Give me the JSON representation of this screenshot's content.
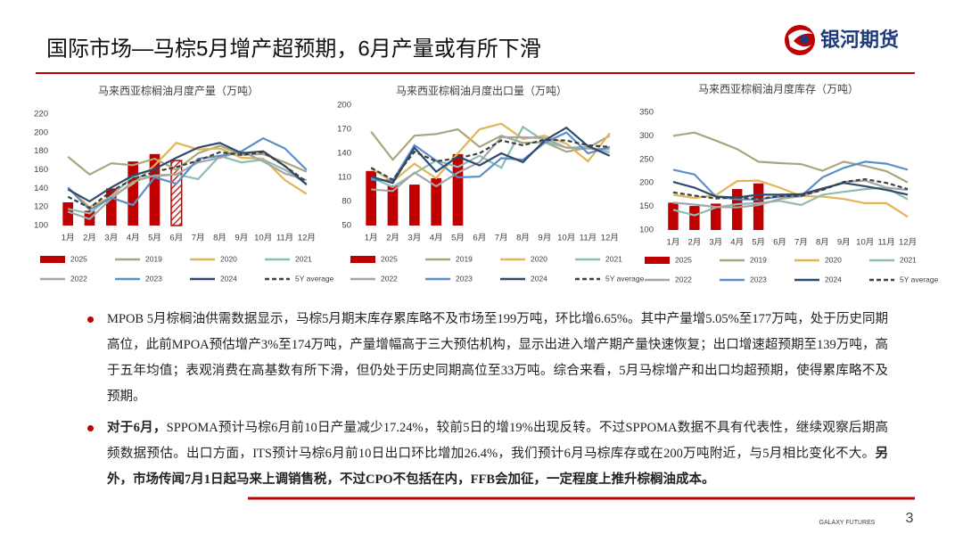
{
  "header": {
    "title": "国际市场—马棕5月增产超预期，6月产量或有所下滑",
    "logo": "银河期货"
  },
  "chart_data": [
    {
      "type": "combo",
      "title": "马来西亚棕榈油月度产量（万吨）",
      "categories": [
        "1月",
        "2月",
        "3月",
        "4月",
        "5月",
        "6月",
        "7月",
        "8月",
        "9月",
        "10月",
        "11月",
        "12月"
      ],
      "ylim": [
        100,
        220
      ],
      "yticks": [
        100,
        120,
        140,
        160,
        180,
        200,
        220
      ],
      "series": [
        {
          "name": "2025",
          "kind": "bar",
          "color": "#c00000",
          "values": [
            125,
            116,
            140,
            169,
            177,
            170,
            null,
            null,
            null,
            null,
            null,
            null
          ],
          "hatched_points": [
            5
          ]
        },
        {
          "name": "2019",
          "kind": "line",
          "color": "#a9a67e",
          "values": [
            174,
            155,
            167,
            165,
            172,
            160,
            178,
            186,
            176,
            177,
            168,
            158
          ]
        },
        {
          "name": "2020",
          "kind": "line",
          "color": "#e2b557",
          "values": [
            141,
            120,
            131,
            145,
            165,
            189,
            182,
            183,
            173,
            172,
            149,
            134
          ]
        },
        {
          "name": "2021",
          "kind": "line",
          "color": "#8fbcb0",
          "values": [
            118,
            113,
            132,
            153,
            153,
            155,
            150,
            175,
            168,
            171,
            160,
            145
          ]
        },
        {
          "name": "2022",
          "kind": "line",
          "color": "#a5a5a5",
          "values": [
            115,
            107,
            129,
            147,
            154,
            155,
            168,
            173,
            180,
            169,
            156,
            149
          ]
        },
        {
          "name": "2023",
          "kind": "line",
          "color": "#5b8fc7",
          "values": [
            141,
            117,
            130,
            122,
            152,
            145,
            172,
            175,
            180,
            194,
            183,
            160
          ]
        },
        {
          "name": "2024",
          "kind": "line",
          "color": "#2e4a70",
          "values": [
            139,
            126,
            141,
            154,
            161,
            173,
            184,
            189,
            178,
            180,
            164,
            144
          ]
        },
        {
          "name": "5Y average",
          "kind": "line",
          "color": "#404040",
          "dashed": true,
          "values": [
            131,
            119,
            137,
            150,
            158,
            163,
            170,
            179,
            176,
            179,
            164,
            147
          ]
        }
      ]
    },
    {
      "type": "combo",
      "title": "马来西亚棕榈油月度出口量（万吨）",
      "categories": [
        "1月",
        "2月",
        "3月",
        "4月",
        "5月",
        "6月",
        "7月",
        "8月",
        "9月",
        "10月",
        "11月",
        "12月"
      ],
      "ylim": [
        50,
        200
      ],
      "yticks": [
        50,
        80,
        110,
        140,
        170,
        200
      ],
      "series": [
        {
          "name": "2025",
          "kind": "bar",
          "color": "#c00000",
          "values": [
            118,
            100,
            101,
            109,
            139,
            null,
            null,
            null,
            null,
            null,
            null,
            null
          ]
        },
        {
          "name": "2019",
          "kind": "line",
          "color": "#a9a67e",
          "values": [
            167,
            132,
            162,
            164,
            170,
            148,
            162,
            153,
            154,
            142,
            147,
            162
          ]
        },
        {
          "name": "2020",
          "kind": "line",
          "color": "#e2b557",
          "values": [
            121,
            105,
            127,
            109,
            140,
            170,
            177,
            158,
            162,
            152,
            130,
            165
          ]
        },
        {
          "name": "2021",
          "kind": "line",
          "color": "#8fbcb0",
          "values": [
            110,
            98,
            115,
            131,
            123,
            137,
            122,
            173,
            155,
            147,
            148,
            141
          ]
        },
        {
          "name": "2022",
          "kind": "line",
          "color": "#a5a5a5",
          "values": [
            95,
            93,
            116,
            99,
            116,
            129,
            160,
            160,
            159,
            147,
            146,
            145
          ]
        },
        {
          "name": "2023",
          "kind": "line",
          "color": "#5b8fc7",
          "values": [
            107,
            106,
            150,
            131,
            110,
            111,
            134,
            132,
            153,
            166,
            140,
            148
          ]
        },
        {
          "name": "2024",
          "kind": "line",
          "color": "#2e4a70",
          "values": [
            111,
            103,
            147,
            117,
            136,
            125,
            140,
            129,
            156,
            172,
            149,
            137
          ]
        },
        {
          "name": "5Y average",
          "kind": "line",
          "color": "#404040",
          "dashed": true,
          "values": [
            122,
            107,
            142,
            130,
            134,
            140,
            156,
            150,
            157,
            156,
            150,
            148
          ]
        }
      ]
    },
    {
      "type": "combo",
      "title": "马来西亚棕榈油月度库存（万吨）",
      "categories": [
        "1月",
        "2月",
        "3月",
        "4月",
        "5月",
        "6月",
        "7月",
        "8月",
        "9月",
        "10月",
        "11月",
        "12月"
      ],
      "ylim": [
        100,
        350
      ],
      "yticks": [
        100,
        150,
        200,
        250,
        300,
        350
      ],
      "series": [
        {
          "name": "2025",
          "kind": "bar",
          "color": "#c00000",
          "values": [
            158,
            151,
            156,
            187,
            199,
            null,
            null,
            null,
            null,
            null,
            null,
            null
          ]
        },
        {
          "name": "2019",
          "kind": "line",
          "color": "#a9a67e",
          "values": [
            300,
            307,
            290,
            272,
            245,
            242,
            240,
            226,
            245,
            236,
            225,
            201
          ]
        },
        {
          "name": "2020",
          "kind": "line",
          "color": "#e2b557",
          "values": [
            175,
            168,
            174,
            204,
            205,
            190,
            172,
            171,
            166,
            157,
            157,
            128
          ]
        },
        {
          "name": "2021",
          "kind": "line",
          "color": "#8fbcb0",
          "values": [
            143,
            131,
            148,
            155,
            157,
            162,
            153,
            175,
            181,
            187,
            190,
            165
          ]
        },
        {
          "name": "2022",
          "kind": "line",
          "color": "#a5a5a5",
          "values": [
            158,
            154,
            149,
            148,
            153,
            166,
            172,
            186,
            202,
            205,
            190,
            185
          ]
        },
        {
          "name": "2023",
          "kind": "line",
          "color": "#5b8fc7",
          "values": [
            228,
            218,
            171,
            165,
            165,
            171,
            172,
            212,
            232,
            245,
            241,
            228
          ]
        },
        {
          "name": "2024",
          "kind": "line",
          "color": "#2e4a70",
          "values": [
            202,
            190,
            171,
            169,
            175,
            175,
            176,
            188,
            200,
            193,
            185,
            175
          ]
        },
        {
          "name": "5Y average",
          "kind": "line",
          "color": "#404040",
          "dashed": true,
          "values": [
            180,
            173,
            167,
            169,
            166,
            172,
            173,
            185,
            202,
            208,
            200,
            187
          ]
        }
      ]
    }
  ],
  "bullets": [
    [
      {
        "text": "MPOB 5月棕榈油供需数据显示，马棕5月期末库存累库略不及市场至199万吨，环比增6.65%。其中产量增5.05%至177万吨，处于历史同期高位，此前MPOA预估增产3%至174万吨，产量增幅高于三大预估机构，显示出进入增产期产量快速恢复；出口增速超预期至139万吨，高于五年均值；表观消费在高基数有所下滑，但仍处于历史同期高位至33万吨。综合来看，5月马棕增产和出口均超预期，使得累库略不及预期。",
        "bold": false
      }
    ],
    [
      {
        "text": "对于6月，",
        "bold": true
      },
      {
        "text": "SPPOMA预计马棕6月前10日产量减少17.24%，较前5日的增19%出现反转。不过SPPOMA数据不具有代表性，继续观察后期高频数据预估。出口方面，ITS预计马棕6月前10日出口环比增加26.4%，我们预计6月马棕库存或在200万吨附近，与5月相比变化不大。",
        "bold": false
      },
      {
        "text": "另外，市场传闻7月1日起马来上调销售税，不过CPO不包括在内，FFB会加征，一定程度上推升棕榈油成本。",
        "bold": true
      }
    ]
  ],
  "footer": {
    "brand": "GALAXY FUTURES",
    "page": "3"
  }
}
